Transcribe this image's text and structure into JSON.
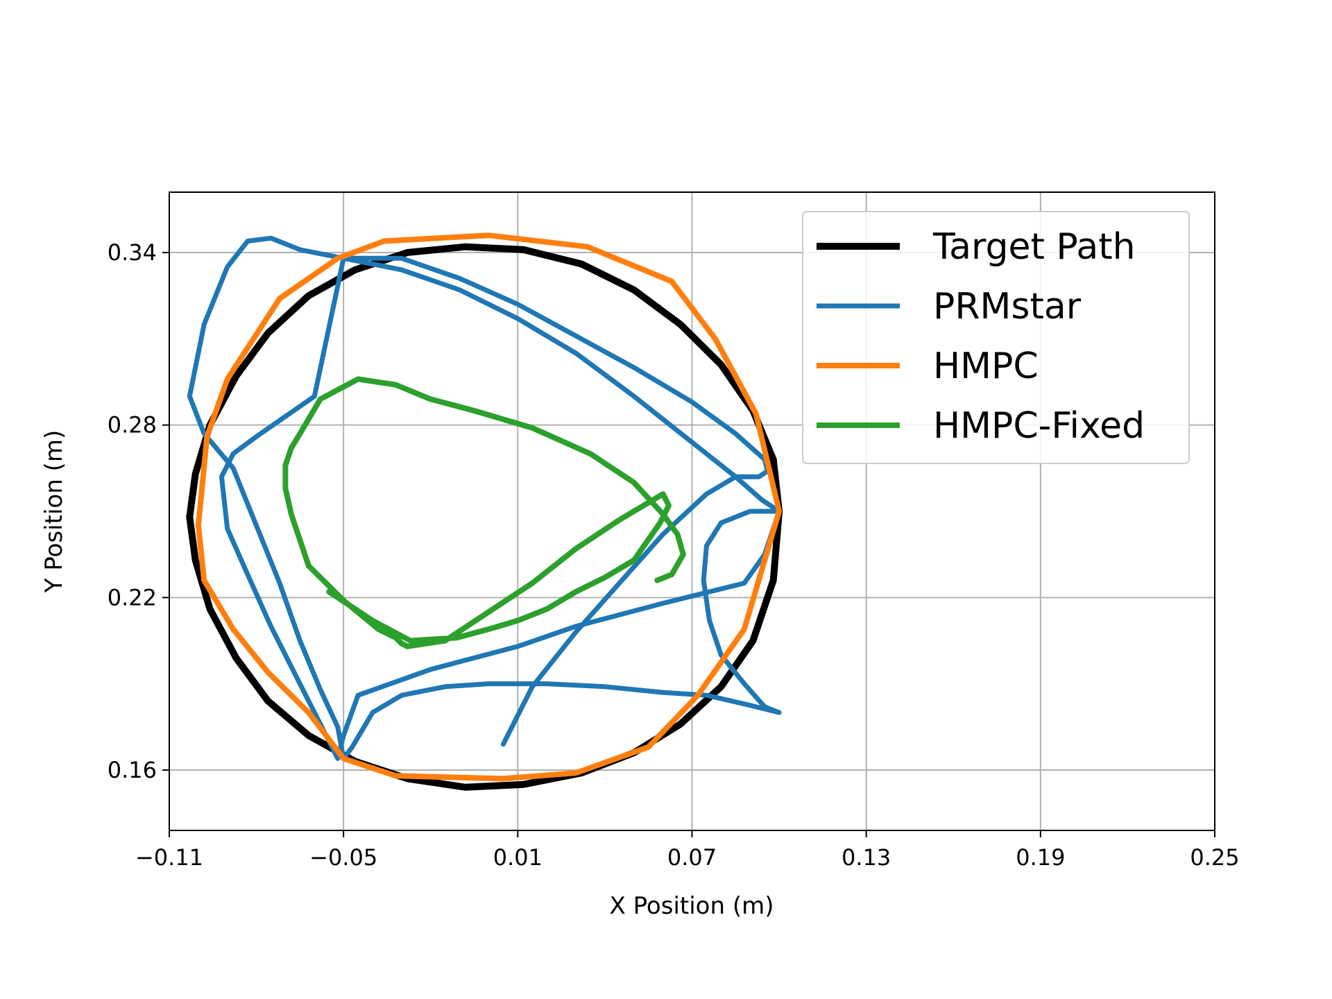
{
  "chart_data": {
    "type": "line",
    "title": "",
    "xlabel": "X Position (m)",
    "ylabel": "Y Position (m)",
    "xlim": [
      -0.11,
      0.25
    ],
    "ylim": [
      0.139,
      0.361
    ],
    "xticks": [
      -0.11,
      -0.05,
      0.01,
      0.07,
      0.13,
      0.19,
      0.25
    ],
    "xtick_labels": [
      "−0.11",
      "−0.05",
      "0.01",
      "0.07",
      "0.13",
      "0.19",
      "0.25"
    ],
    "yticks": [
      0.16,
      0.22,
      0.28,
      0.34
    ],
    "ytick_labels": [
      "0.16",
      "0.22",
      "0.28",
      "0.34"
    ],
    "grid": true,
    "legend_position": "top-right",
    "series": [
      {
        "name": "Target Path",
        "color": "#000000",
        "x": [
          0.1,
          0.098,
          0.091,
          0.08,
          0.066,
          0.05,
          0.032,
          0.012,
          -0.008,
          -0.028,
          -0.046,
          -0.062,
          -0.076,
          -0.087,
          -0.096,
          -0.101,
          -0.103,
          -0.101,
          -0.096,
          -0.087,
          -0.076,
          -0.062,
          -0.046,
          -0.028,
          -0.008,
          0.012,
          0.032,
          0.05,
          0.066,
          0.08,
          0.091,
          0.098,
          0.1
        ],
        "y": [
          0.25,
          0.268,
          0.285,
          0.301,
          0.315,
          0.327,
          0.336,
          0.341,
          0.342,
          0.34,
          0.334,
          0.325,
          0.312,
          0.297,
          0.28,
          0.263,
          0.248,
          0.233,
          0.216,
          0.199,
          0.184,
          0.172,
          0.163,
          0.157,
          0.154,
          0.155,
          0.159,
          0.166,
          0.176,
          0.189,
          0.205,
          0.226,
          0.25
        ]
      },
      {
        "name": "PRMstar",
        "color": "#1f77b4",
        "x": [
          0.1,
          0.094,
          0.085,
          0.07,
          0.05,
          0.03,
          0.01,
          -0.01,
          -0.03,
          -0.05,
          -0.065,
          -0.075,
          -0.083,
          -0.09,
          -0.098,
          -0.103,
          -0.098,
          -0.088,
          -0.08,
          -0.072,
          -0.065,
          -0.058,
          -0.052,
          -0.05,
          -0.047,
          -0.04,
          -0.03,
          -0.015,
          0.0,
          0.02,
          0.04,
          0.06,
          0.075,
          0.088,
          0.096,
          0.1,
          0.095,
          0.088,
          0.08,
          0.076,
          0.074,
          0.075,
          0.08,
          0.09,
          0.1,
          0.095,
          0.088,
          0.06,
          0.03,
          0.01,
          -0.02,
          -0.045,
          -0.05,
          -0.052,
          -0.058,
          -0.066,
          -0.075,
          -0.083,
          -0.09,
          -0.092,
          -0.088,
          -0.08,
          -0.07,
          -0.06,
          -0.05,
          -0.03,
          -0.01,
          0.01,
          0.03,
          0.05,
          0.07,
          0.085,
          0.095,
          0.096,
          0.093,
          0.085,
          0.075,
          0.06,
          0.045,
          0.03,
          0.015,
          0.005
        ],
        "y": [
          0.25,
          0.254,
          0.262,
          0.274,
          0.29,
          0.305,
          0.317,
          0.327,
          0.334,
          0.338,
          0.341,
          0.345,
          0.344,
          0.335,
          0.315,
          0.29,
          0.277,
          0.265,
          0.245,
          0.225,
          0.205,
          0.188,
          0.175,
          0.164,
          0.168,
          0.18,
          0.186,
          0.189,
          0.19,
          0.19,
          0.189,
          0.187,
          0.186,
          0.183,
          0.181,
          0.18,
          0.182,
          0.19,
          0.2,
          0.212,
          0.226,
          0.238,
          0.246,
          0.25,
          0.25,
          0.235,
          0.225,
          0.218,
          0.21,
          0.203,
          0.195,
          0.186,
          0.172,
          0.164,
          0.176,
          0.192,
          0.21,
          0.228,
          0.244,
          0.262,
          0.27,
          0.276,
          0.283,
          0.29,
          0.338,
          0.338,
          0.331,
          0.322,
          0.311,
          0.3,
          0.288,
          0.277,
          0.268,
          0.264,
          0.262,
          0.262,
          0.256,
          0.242,
          0.225,
          0.208,
          0.189,
          0.169
        ]
      },
      {
        "name": "HMPC",
        "color": "#ff7f0e",
        "x": [
          0.1,
          0.092,
          0.078,
          0.063,
          0.034,
          0.0,
          -0.036,
          -0.052,
          -0.072,
          -0.09,
          -0.097,
          -0.1,
          -0.098,
          -0.088,
          -0.076,
          -0.062,
          -0.05,
          -0.032,
          0.005,
          0.03,
          0.055,
          0.072,
          0.088,
          0.1
        ],
        "y": [
          0.25,
          0.284,
          0.31,
          0.33,
          0.342,
          0.346,
          0.344,
          0.338,
          0.324,
          0.296,
          0.276,
          0.245,
          0.226,
          0.209,
          0.194,
          0.18,
          0.164,
          0.158,
          0.157,
          0.159,
          0.168,
          0.186,
          0.209,
          0.25
        ]
      },
      {
        "name": "HMPC-Fixed",
        "color": "#2ca02c",
        "x": [
          0.058,
          0.063,
          0.067,
          0.065,
          0.06,
          0.05,
          0.035,
          0.015,
          -0.005,
          -0.02,
          -0.032,
          -0.045,
          -0.058,
          -0.065,
          -0.068,
          -0.07,
          -0.07,
          -0.068,
          -0.062,
          -0.05,
          -0.038,
          -0.032,
          -0.03,
          -0.028,
          -0.015,
          0.0,
          0.015,
          0.03,
          0.045,
          0.055,
          0.06,
          0.062,
          0.059,
          0.05,
          0.04,
          0.03,
          0.02,
          0.01,
          0.0,
          -0.011,
          -0.027,
          -0.04,
          -0.055
        ],
        "y": [
          0.226,
          0.228,
          0.235,
          0.242,
          0.249,
          0.26,
          0.27,
          0.279,
          0.285,
          0.289,
          0.294,
          0.296,
          0.289,
          0.277,
          0.272,
          0.266,
          0.258,
          0.249,
          0.231,
          0.219,
          0.209,
          0.206,
          0.204,
          0.203,
          0.205,
          0.215,
          0.225,
          0.237,
          0.247,
          0.253,
          0.256,
          0.252,
          0.246,
          0.233,
          0.227,
          0.222,
          0.216,
          0.212,
          0.209,
          0.206,
          0.205,
          0.212,
          0.222
        ]
      }
    ]
  }
}
